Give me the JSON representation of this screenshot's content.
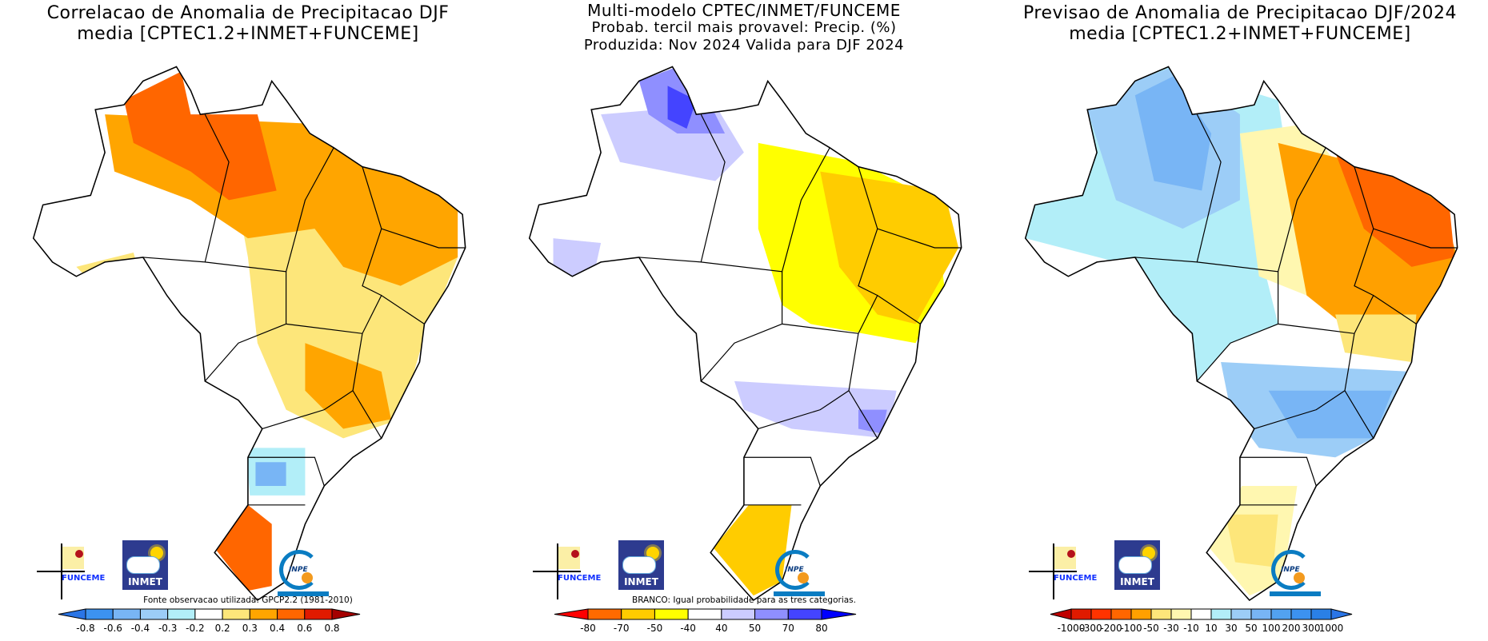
{
  "panels": [
    {
      "title_lines": [
        "Correlacao de Anomalia de Precipitacao DJF",
        "media [CPTEC1.2+INMET+FUNCEME]"
      ],
      "note": "Fonte observacao utilizada: GPCP2.2 (1981-2010)",
      "colorbar": {
        "labels": [
          "-0.8",
          "-0.6",
          "-0.4",
          "-0.3",
          "-0.2",
          "0.2",
          "0.3",
          "0.4",
          "0.6",
          "0.8"
        ],
        "colors": [
          "#3c92f0",
          "#78b5f5",
          "#9ccdf7",
          "#b2eef8",
          "#ffffff",
          "#fde67a",
          "#ffa500",
          "#ff6600",
          "#e01a00"
        ],
        "low_arrow": "#2a75e6",
        "high_arrow": "#a50000"
      }
    },
    {
      "title_lines": [
        "Multi-modelo CPTEC/INMET/FUNCEME",
        "Probab. tercil mais provavel: Precip. (%)",
        "Produzida: Nov 2024  Valida para DJF 2024"
      ],
      "note": "BRANCO: Igual probabilidade para as tres categorias.",
      "colorbar": {
        "labels": [
          "-80",
          "-70",
          "-50",
          "-40",
          "40",
          "50",
          "70",
          "80"
        ],
        "colors": [
          "#ff6a00",
          "#ffcc00",
          "#ffff00",
          "#ffffff",
          "#ccccff",
          "#8f8fff",
          "#4444ff"
        ],
        "low_arrow": "#ff0000",
        "high_arrow": "#0000ff"
      }
    },
    {
      "title_lines": [
        "Previsao de Anomalia de Precipitacao DJF/2024",
        "media [CPTEC1.2+INMET+FUNCEME]"
      ],
      "colorbar": {
        "labels": [
          "-1000",
          "-300",
          "-200",
          "-100",
          "-50",
          "-30",
          "-10",
          "10",
          "30",
          "50",
          "100",
          "200",
          "300",
          "1000"
        ],
        "colors": [
          "#e01a00",
          "#ff3300",
          "#ff6600",
          "#ffa000",
          "#fde67a",
          "#fff7b0",
          "#ffffff",
          "#b2eef8",
          "#9ccdf7",
          "#78b5f5",
          "#52a2f0",
          "#3c92f0",
          "#2a80e6"
        ],
        "low_arrow": "#c00000",
        "high_arrow": "#2a75e6"
      }
    }
  ],
  "logos": {
    "funceme": "FUNCEME",
    "inmet": "INMET",
    "inpe": "INPE"
  }
}
